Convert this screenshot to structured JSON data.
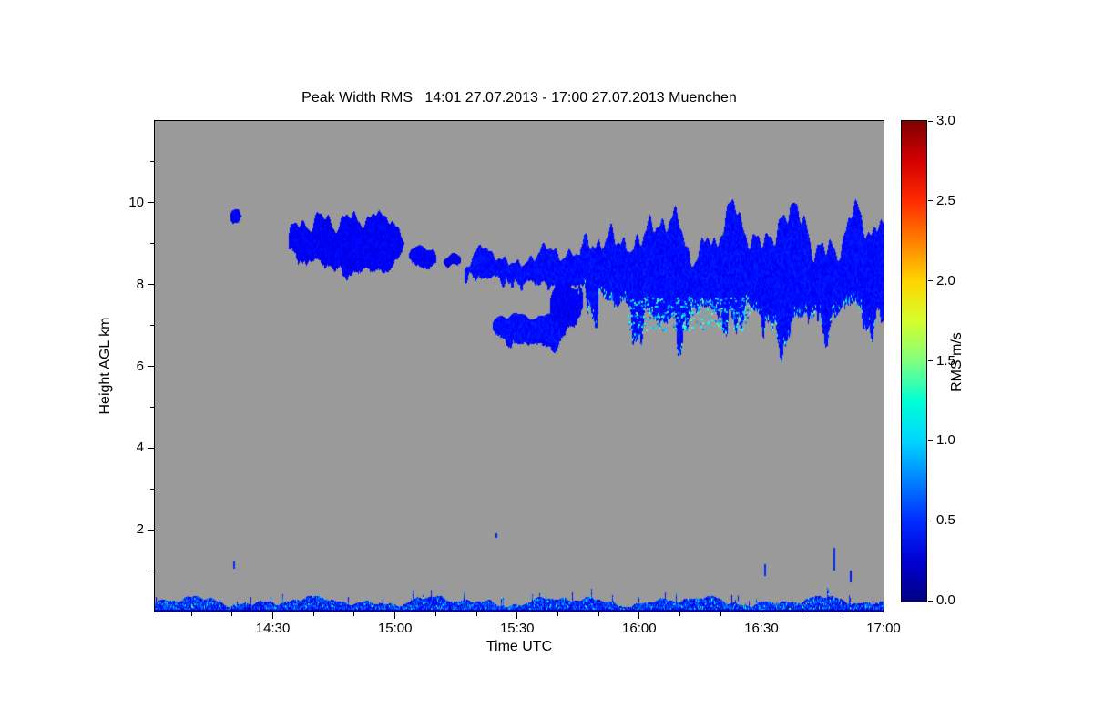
{
  "chart": {
    "title": "Peak Width RMS   14:01 27.07.2013 - 17:00 27.07.2013 Muenchen",
    "xlabel": "Time UTC",
    "ylabel": "Height AGL km",
    "colorbar_label": "RMS m/s"
  },
  "chart_data": {
    "type": "heatmap",
    "title": "Peak Width RMS   14:01 27.07.2013 - 17:00 27.07.2013 Muenchen",
    "xlabel": "Time UTC",
    "ylabel": "Height AGL km",
    "x_start_label": "14:01",
    "x_end_label": "17:00",
    "total_minutes": 179,
    "x_ticks": [
      {
        "label": "14:30",
        "minutes": 29
      },
      {
        "label": "15:00",
        "minutes": 59
      },
      {
        "label": "15:30",
        "minutes": 89
      },
      {
        "label": "16:00",
        "minutes": 119
      },
      {
        "label": "16:30",
        "minutes": 149
      },
      {
        "label": "17:00",
        "minutes": 179
      }
    ],
    "x_minor_step_minutes": 10,
    "ylim": [
      0,
      12
    ],
    "y_ticks": [
      {
        "label": "2",
        "km": 2
      },
      {
        "label": "4",
        "km": 4
      },
      {
        "label": "6",
        "km": 6
      },
      {
        "label": "8",
        "km": 8
      },
      {
        "label": "10",
        "km": 10
      }
    ],
    "plot_bg": "#9a9a9a",
    "frame_color": "#000000",
    "colorbar": {
      "label": "RMS m/s",
      "min": 0,
      "max": 3,
      "unit": "m/s",
      "ticks": [
        "0.0",
        "0.5",
        "1.0",
        "1.5",
        "2.0",
        "2.5",
        "3.0"
      ],
      "colormap": "jet",
      "stops": [
        {
          "value": 0.0,
          "color": "#000080"
        },
        {
          "value": 0.25,
          "color": "#0000d4"
        },
        {
          "value": 0.5,
          "color": "#002bff"
        },
        {
          "value": 0.75,
          "color": "#0080ff"
        },
        {
          "value": 1.0,
          "color": "#00d5ff"
        },
        {
          "value": 1.25,
          "color": "#00ffd4"
        },
        {
          "value": 1.5,
          "color": "#80ff80"
        },
        {
          "value": 1.75,
          "color": "#d4ff2b"
        },
        {
          "value": 2.0,
          "color": "#ffd500"
        },
        {
          "value": 2.25,
          "color": "#ff8000"
        },
        {
          "value": 2.5,
          "color": "#ff2b00"
        },
        {
          "value": 2.75,
          "color": "#d40000"
        },
        {
          "value": 3.0,
          "color": "#800000"
        }
      ]
    },
    "features": {
      "clouds": [
        {
          "t0": 18.5,
          "t1": 21,
          "base": 9.6,
          "top": 9.95,
          "rms": 0.35,
          "seed": 1
        },
        {
          "t0": 33,
          "t1": 61,
          "base": 8.3,
          "top": 9.75,
          "rms": 0.35,
          "seed": 2,
          "topAmp": 0.3,
          "baseAmp": 0.2
        },
        {
          "t0": 62.5,
          "t1": 69,
          "base": 8.35,
          "top": 8.95,
          "rms": 0.35,
          "seed": 3
        },
        {
          "t0": 71,
          "t1": 75,
          "base": 8.5,
          "top": 8.75,
          "rms": 0.3,
          "seed": 4
        },
        {
          "t0": 76,
          "t1": 123,
          "base": 8.0,
          "top": 8.8,
          "rms": 0.4,
          "seed": 5,
          "topAmp": 0.25,
          "baseAmp": 0.3
        },
        {
          "t0": 83,
          "t1": 101,
          "base": 6.55,
          "top": 7.35,
          "rms": 0.4,
          "seed": 6,
          "baseAmp": 0.2
        },
        {
          "t0": 97,
          "t1": 105,
          "base": 6.9,
          "top": 8.2,
          "rms": 0.35,
          "seed": 7
        },
        {
          "t0": 104,
          "t1": 179,
          "base": 7.1,
          "top": 9.55,
          "rms": 0.4,
          "seed": 8,
          "topAmp": 0.55,
          "baseAmp": 0.9,
          "brightBase": true,
          "noEndTaper": true
        }
      ],
      "bright_patches": [
        {
          "t0": 116,
          "t1": 146,
          "z0": 6.9,
          "z1": 7.7,
          "rms": 1.0,
          "count": 260
        }
      ],
      "ground_band": {
        "top_km_base": 0.12,
        "top_km_noise": 0.26,
        "rms_lo": 0.2,
        "rms_hi": 0.8,
        "bright_fraction": 0.07,
        "bright_rms": 1.2
      },
      "specks": [
        {
          "t": 19.5,
          "km": 1.05,
          "h": 0.18,
          "rms": 0.5
        },
        {
          "t": 84,
          "km": 1.8,
          "h": 0.12,
          "rms": 0.45
        },
        {
          "t": 150,
          "km": 0.85,
          "h": 0.3,
          "rms": 0.5
        },
        {
          "t": 167,
          "km": 1.0,
          "h": 0.55,
          "rms": 0.5
        },
        {
          "t": 171,
          "km": 0.7,
          "h": 0.3,
          "rms": 0.45
        }
      ]
    }
  }
}
